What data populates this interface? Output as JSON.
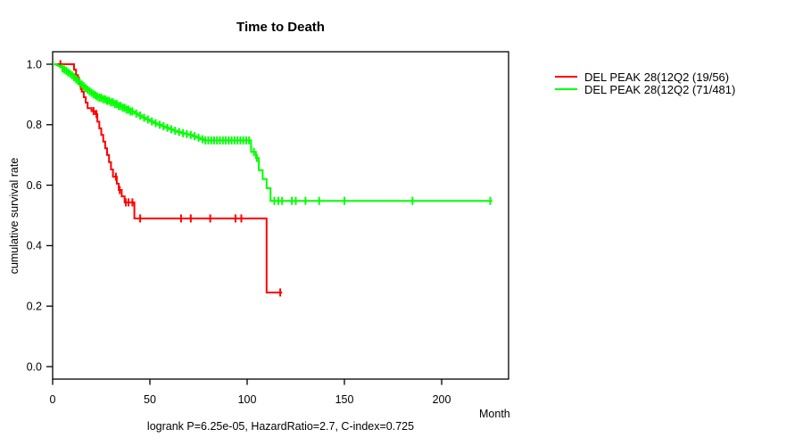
{
  "chart_data": {
    "type": "line",
    "subtype": "kaplan_meier_step",
    "title": "Time to Death",
    "xlabel": "Month",
    "ylabel": "cumulative survival rate",
    "annotation": "logrank P=6.25e-05, HazardRatio=2.7, C-index=0.725",
    "stats": {
      "logrank_p": "6.25e-05",
      "hazard_ratio": "2.7",
      "c_index": "0.725"
    },
    "x_ticks": [
      0,
      50,
      100,
      150,
      200
    ],
    "y_ticks": [
      0.0,
      0.2,
      0.4,
      0.6,
      0.8,
      1.0
    ],
    "xlim": [
      0,
      234
    ],
    "ylim": [
      0,
      1.04
    ],
    "grid": false,
    "legend_position": "right-outside",
    "axis_color": "#000000",
    "background": "#ffffff",
    "series": [
      {
        "name": "DEL PEAK 28(12Q2 (19/56)",
        "color": "#ff0000",
        "end_month": 118,
        "steps": [
          [
            0,
            1.0
          ],
          [
            11,
            0.982
          ],
          [
            12,
            0.964
          ],
          [
            13,
            0.946
          ],
          [
            14,
            0.928
          ],
          [
            15,
            0.909
          ],
          [
            16,
            0.891
          ],
          [
            17,
            0.873
          ],
          [
            18,
            0.855
          ],
          [
            20,
            0.845
          ],
          [
            22,
            0.835
          ],
          [
            23,
            0.81
          ],
          [
            24,
            0.788
          ],
          [
            25,
            0.766
          ],
          [
            26,
            0.744
          ],
          [
            27,
            0.722
          ],
          [
            28,
            0.7
          ],
          [
            29,
            0.676
          ],
          [
            30,
            0.652
          ],
          [
            31,
            0.628
          ],
          [
            33,
            0.605
          ],
          [
            34,
            0.584
          ],
          [
            35.5,
            0.563
          ],
          [
            37,
            0.543
          ],
          [
            42,
            0.49
          ],
          [
            110,
            0.245
          ]
        ],
        "censor_months": [
          4,
          13.5,
          14.5,
          21,
          22.5,
          32.5,
          34.5,
          37.6,
          39,
          41,
          45,
          66,
          71,
          81,
          94,
          97,
          117
        ]
      },
      {
        "name": "DEL PEAK 28(12Q2 (71/481)",
        "color": "#00ff00",
        "end_month": 226,
        "steps": [
          [
            0,
            1.0
          ],
          [
            2,
            0.997
          ],
          [
            3,
            0.994
          ],
          [
            4,
            0.99
          ],
          [
            5,
            0.986
          ],
          [
            6,
            0.982
          ],
          [
            7,
            0.978
          ],
          [
            8,
            0.973
          ],
          [
            9,
            0.968
          ],
          [
            10,
            0.963
          ],
          [
            11,
            0.957
          ],
          [
            12,
            0.951
          ],
          [
            13,
            0.945
          ],
          [
            14,
            0.939
          ],
          [
            15,
            0.933
          ],
          [
            16,
            0.927
          ],
          [
            17,
            0.921
          ],
          [
            18,
            0.916
          ],
          [
            19,
            0.911
          ],
          [
            20,
            0.906
          ],
          [
            21,
            0.901
          ],
          [
            22,
            0.897
          ],
          [
            23,
            0.893
          ],
          [
            24,
            0.889
          ],
          [
            26,
            0.884
          ],
          [
            28,
            0.879
          ],
          [
            30,
            0.874
          ],
          [
            32,
            0.868
          ],
          [
            34,
            0.862
          ],
          [
            36,
            0.856
          ],
          [
            38,
            0.85
          ],
          [
            40,
            0.844
          ],
          [
            42,
            0.837
          ],
          [
            44,
            0.83
          ],
          [
            46,
            0.823
          ],
          [
            48,
            0.817
          ],
          [
            50,
            0.811
          ],
          [
            52,
            0.805
          ],
          [
            54,
            0.8
          ],
          [
            56,
            0.795
          ],
          [
            58,
            0.79
          ],
          [
            60,
            0.785
          ],
          [
            62,
            0.78
          ],
          [
            64,
            0.776
          ],
          [
            66,
            0.772
          ],
          [
            68,
            0.769
          ],
          [
            70,
            0.766
          ],
          [
            72,
            0.762
          ],
          [
            74,
            0.757
          ],
          [
            76,
            0.752
          ],
          [
            78,
            0.748
          ],
          [
            102,
            0.71
          ],
          [
            104.5,
            0.69
          ],
          [
            106,
            0.65
          ],
          [
            108,
            0.62
          ],
          [
            110,
            0.59
          ],
          [
            112,
            0.548
          ]
        ],
        "censor_months": [
          5,
          6,
          7,
          8,
          9,
          10,
          11,
          12,
          13,
          14,
          15,
          16,
          17,
          18,
          19,
          20,
          21,
          22,
          23,
          24,
          25,
          26,
          27,
          28,
          29,
          30,
          31,
          32,
          33,
          34,
          35,
          36,
          37,
          38,
          39,
          40,
          41,
          43,
          45,
          47,
          49,
          51,
          53,
          55,
          57,
          59,
          61,
          63,
          65,
          67,
          69,
          71,
          73,
          75,
          77,
          78.5,
          80,
          81.5,
          83,
          84.5,
          86,
          87.5,
          89,
          90.5,
          92,
          93.5,
          95,
          96.5,
          98,
          99.5,
          101,
          103.5,
          105,
          114,
          116,
          118,
          123,
          125,
          130,
          137,
          150,
          185,
          225
        ]
      }
    ]
  }
}
